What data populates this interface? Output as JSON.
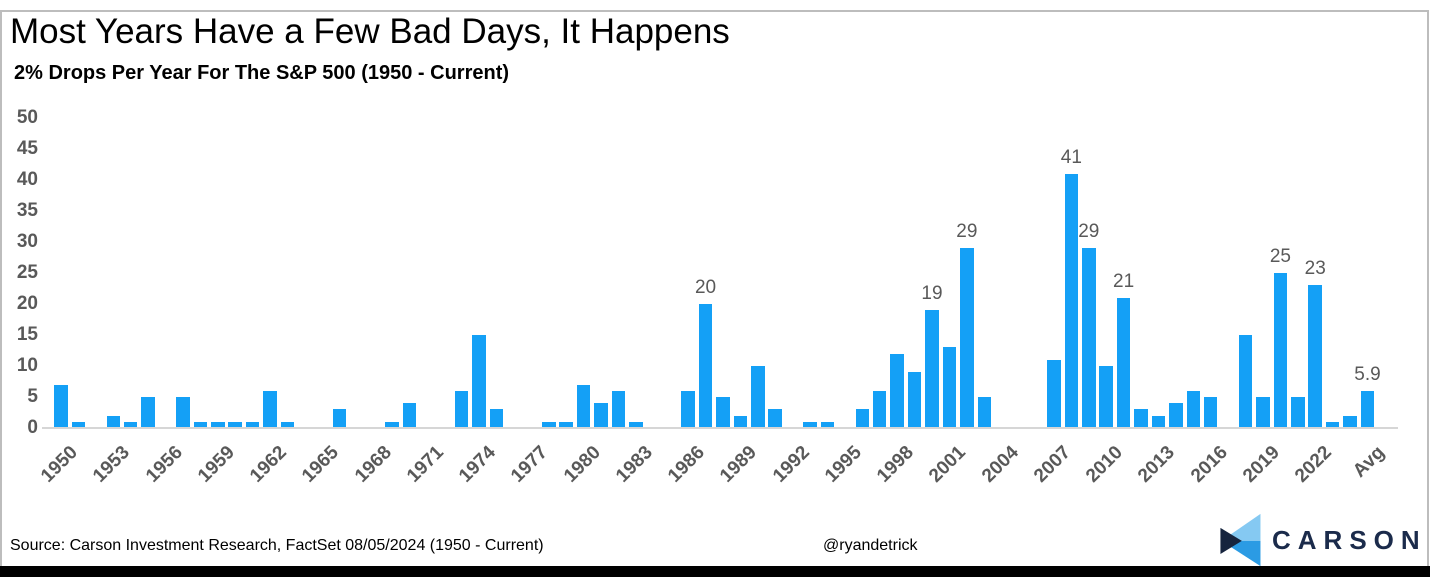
{
  "header": {
    "title": "Most Years Have a Few Bad Days, It Happens",
    "subtitle": "2% Drops Per Year For The S&P 500 (1950 - Current)"
  },
  "chart_data": {
    "type": "bar",
    "title": "Most Years Have a Few Bad Days, It Happens",
    "subtitle": "2% Drops Per Year For The S&P 500 (1950 - Current)",
    "categories": [
      "1950",
      "1951",
      "1952",
      "1953",
      "1954",
      "1955",
      "1956",
      "1957",
      "1958",
      "1959",
      "1960",
      "1961",
      "1962",
      "1963",
      "1964",
      "1965",
      "1966",
      "1967",
      "1968",
      "1969",
      "1970",
      "1971",
      "1972",
      "1973",
      "1974",
      "1975",
      "1976",
      "1977",
      "1978",
      "1979",
      "1980",
      "1981",
      "1982",
      "1983",
      "1984",
      "1985",
      "1986",
      "1987",
      "1988",
      "1989",
      "1990",
      "1991",
      "1992",
      "1993",
      "1994",
      "1995",
      "1996",
      "1997",
      "1998",
      "1999",
      "2000",
      "2001",
      "2002",
      "2003",
      "2004",
      "2005",
      "2006",
      "2007",
      "2008",
      "2009",
      "2010",
      "2011",
      "2012",
      "2013",
      "2014",
      "2015",
      "2016",
      "2017",
      "2018",
      "2019",
      "2020",
      "2021",
      "2022",
      "2023",
      "2024",
      "Avg"
    ],
    "values": [
      7,
      1,
      0,
      2,
      1,
      5,
      0,
      5,
      1,
      1,
      1,
      1,
      6,
      1,
      0,
      0,
      3,
      0,
      0,
      1,
      4,
      0,
      0,
      6,
      15,
      3,
      0,
      0,
      1,
      1,
      7,
      4,
      6,
      1,
      0,
      0,
      6,
      20,
      5,
      2,
      10,
      3,
      0,
      1,
      1,
      0,
      3,
      6,
      12,
      9,
      19,
      13,
      29,
      5,
      0,
      0,
      0,
      11,
      41,
      29,
      10,
      21,
      3,
      2,
      4,
      6,
      5,
      0,
      15,
      5,
      25,
      5,
      23,
      1,
      2,
      5.9
    ],
    "value_labels": [
      {
        "category": "1987",
        "label": "20"
      },
      {
        "category": "2000",
        "label": "19"
      },
      {
        "category": "2002",
        "label": "29"
      },
      {
        "category": "2008",
        "label": "41"
      },
      {
        "category": "2009",
        "label": "29"
      },
      {
        "category": "2011",
        "label": "21"
      },
      {
        "category": "2020",
        "label": "25"
      },
      {
        "category": "2022",
        "label": "23"
      },
      {
        "category": "Avg",
        "label": "5.9"
      }
    ],
    "x_tick_labels": [
      "1950",
      "1953",
      "1956",
      "1959",
      "1962",
      "1965",
      "1968",
      "1971",
      "1974",
      "1977",
      "1980",
      "1983",
      "1986",
      "1989",
      "1992",
      "1995",
      "1998",
      "2001",
      "2004",
      "2007",
      "2010",
      "2013",
      "2016",
      "2019",
      "2022",
      "Avg"
    ],
    "y_ticks": [
      0,
      5,
      10,
      15,
      20,
      25,
      30,
      35,
      40,
      45,
      50
    ],
    "ylim": [
      0,
      50
    ],
    "grid": "off",
    "legend": "none",
    "bar_color": "#14a0f6",
    "axis_label_color": "#595959"
  },
  "footer": {
    "source": "Source: Carson Investment Research, FactSet 08/05/2024 (1950 - Current)",
    "handle": "@ryandetrick",
    "brand_name": "CARSON",
    "logo_colors": {
      "light": "#85c9f2",
      "mid": "#2b9be4",
      "dark": "#16243e",
      "text": "#1b2b4b"
    }
  }
}
